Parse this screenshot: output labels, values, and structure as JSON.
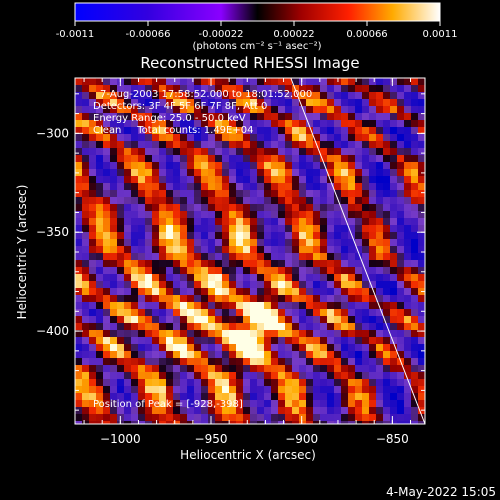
{
  "colorbar": {
    "tick_labels": [
      "-0.0011",
      "-0.00066",
      "-0.00022",
      "0.00022",
      "0.00066",
      "0.0011"
    ],
    "tick_values": [
      -0.0011,
      -0.00066,
      -0.00022,
      0.00022,
      0.00066,
      0.0011
    ],
    "units_line": "(photons cm⁻² s⁻¹ asec⁻²)",
    "range": [
      -0.0011,
      0.0011
    ]
  },
  "chart_data": {
    "type": "heatmap",
    "title": "Reconstructed RHESSI Image",
    "xlabel": "Heliocentric X (arcsec)",
    "ylabel": "Heliocentric Y (arcsec)",
    "xlim": [
      -1025,
      -832
    ],
    "ylim": [
      -447,
      -272
    ],
    "x_ticks": [
      -1000,
      -950,
      -900,
      -850
    ],
    "x_tick_labels": [
      "−1000",
      "−950",
      "−900",
      "−850"
    ],
    "y_ticks": [
      -300,
      -350,
      -400
    ],
    "y_tick_labels": [
      "−300",
      "−350",
      "−400"
    ],
    "annotations": [
      "7-Aug-2003 17:58:52.000 to 18:01:52.000",
      "Detectors: 3F 4F 5F 6F 7F 8F, Att 0",
      "Energy Range: 25.0 - 50.0 keV",
      "Clean     Total counts: 1.49E+04"
    ],
    "peak_label": "Position of Peak = [-928,-398]",
    "peak": [
      -928,
      -398
    ],
    "limb_line": [
      [
        -906,
        -272
      ],
      [
        -832,
        -447
      ]
    ]
  },
  "footer": {
    "timestamp": "4-May-2022 15:05"
  }
}
